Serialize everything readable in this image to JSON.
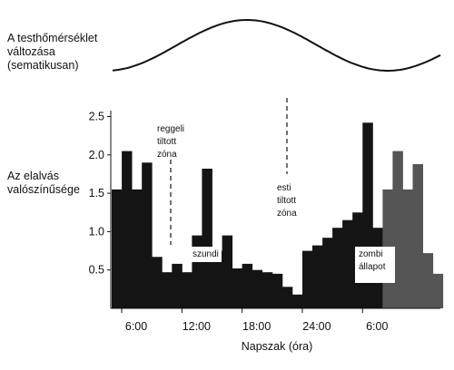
{
  "temperature": {
    "label_lines": [
      "A testhőmérséklet",
      "változása",
      "(sematikusan)"
    ]
  },
  "chart_data": {
    "type": "bar",
    "ylabel_lines": [
      "Az elalvás",
      "valószínűsége"
    ],
    "xlabel": "Napszak (óra)",
    "x_ticks": [
      "6:00",
      "12:00",
      "18:00",
      "24:00",
      "6:00"
    ],
    "x_tick_hours": [
      6,
      12,
      18,
      24,
      30
    ],
    "y_ticks": [
      "0.5",
      "1.0",
      "1.5",
      "2.0",
      "2.5"
    ],
    "y_tick_values": [
      0.5,
      1.0,
      1.5,
      2.0,
      2.5
    ],
    "ylim": [
      0,
      2.5
    ],
    "bin_hours": 1,
    "start_hour": 5,
    "values": [
      1.55,
      2.05,
      1.55,
      1.9,
      0.67,
      0.47,
      0.58,
      0.47,
      0.95,
      1.82,
      0.75,
      0.95,
      0.52,
      0.58,
      0.5,
      0.47,
      0.45,
      0.28,
      0.18,
      0.75,
      0.82,
      0.92,
      1.05,
      1.15,
      1.25,
      2.42,
      1.05,
      1.55,
      2.05,
      1.55,
      1.88,
      0.72,
      0.45
    ],
    "shade_from_bin": 27,
    "colors": {
      "bar": "#141414",
      "bar_shaded": "#555555",
      "axis": "#111111"
    },
    "annotations": [
      {
        "lines": [
          "reggeli",
          "tiltott",
          "zóna"
        ],
        "hour": 10.2,
        "dashed_line": true
      },
      {
        "lines": [
          "esti",
          "tiltott",
          "zóna"
        ],
        "hour": 21.2,
        "dashed_line": true
      },
      {
        "lines": [
          "szundi"
        ],
        "hour": 13.4
      },
      {
        "lines": [
          "zombi",
          "állapot"
        ],
        "hour": 26.8
      }
    ]
  }
}
